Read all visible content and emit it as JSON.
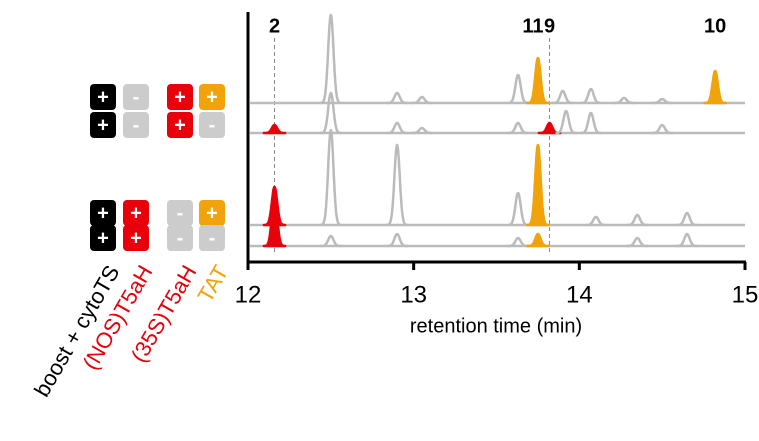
{
  "chart_data": {
    "type": "chromatogram",
    "xlabel": "retention time (min)",
    "xlim": [
      12,
      15
    ],
    "xticks": [
      12,
      13,
      14,
      15
    ],
    "ylim": [
      0,
      100
    ],
    "peak_labels": [
      {
        "label": "2",
        "x": 12.16,
        "dashed": true
      },
      {
        "label": "11",
        "x": 13.72,
        "dashed": false
      },
      {
        "label": "9",
        "x": 13.82,
        "dashed": true
      },
      {
        "label": "10",
        "x": 14.82,
        "dashed": false
      }
    ],
    "series": [
      {
        "x": [
          12.5,
          12.9,
          13.05,
          13.63,
          13.75,
          13.9,
          14.07,
          14.27,
          14.5,
          14.82
        ],
        "values": [
          88,
          10,
          6,
          28,
          45,
          12,
          14,
          5,
          4,
          32
        ],
        "colors": [
          "#bbbbbb",
          "#bbbbbb",
          "#bbbbbb",
          "#bbbbbb",
          "#f0a30a",
          "#bbbbbb",
          "#bbbbbb",
          "#bbbbbb",
          "#bbbbbb",
          "#f0a30a"
        ]
      },
      {
        "x": [
          12.16,
          12.5,
          12.9,
          13.05,
          13.63,
          13.82,
          13.92,
          14.07,
          14.5
        ],
        "values": [
          8,
          40,
          10,
          5,
          10,
          10,
          22,
          20,
          8
        ],
        "colors": [
          "#e8000b",
          "#bbbbbb",
          "#bbbbbb",
          "#bbbbbb",
          "#bbbbbb",
          "#e8000b",
          "#bbbbbb",
          "#bbbbbb",
          "#bbbbbb"
        ]
      },
      {
        "x": [
          12.16,
          12.5,
          12.9,
          13.63,
          13.75,
          14.1,
          14.35,
          14.65
        ],
        "values": [
          38,
          95,
          80,
          32,
          80,
          8,
          10,
          12
        ],
        "colors": [
          "#e8000b",
          "#bbbbbb",
          "#bbbbbb",
          "#bbbbbb",
          "#f0a30a",
          "#bbbbbb",
          "#bbbbbb",
          "#bbbbbb"
        ]
      },
      {
        "x": [
          12.16,
          12.5,
          12.9,
          13.63,
          13.75,
          14.35,
          14.65
        ],
        "values": [
          50,
          10,
          12,
          8,
          12,
          8,
          12
        ],
        "colors": [
          "#e8000b",
          "#bbbbbb",
          "#bbbbbb",
          "#bbbbbb",
          "#f0a30a",
          "#bbbbbb",
          "#bbbbbb"
        ]
      }
    ],
    "legend": {
      "columns": [
        {
          "label": "boost + cytoTS",
          "color": "#000000"
        },
        {
          "label": "(NOS)T5aH",
          "color": "#e8000b"
        },
        {
          "label": "(35S)T5aH",
          "color": "#e8000b"
        },
        {
          "label": "TAT",
          "color": "#f0a30a"
        }
      ],
      "off_color": "#cccccc",
      "rows": [
        [
          "+",
          "-",
          "+",
          "+"
        ],
        [
          "+",
          "-",
          "+",
          "-"
        ],
        [
          "+",
          "+",
          "-",
          "+"
        ],
        [
          "+",
          "+",
          "-",
          "-"
        ]
      ]
    }
  }
}
